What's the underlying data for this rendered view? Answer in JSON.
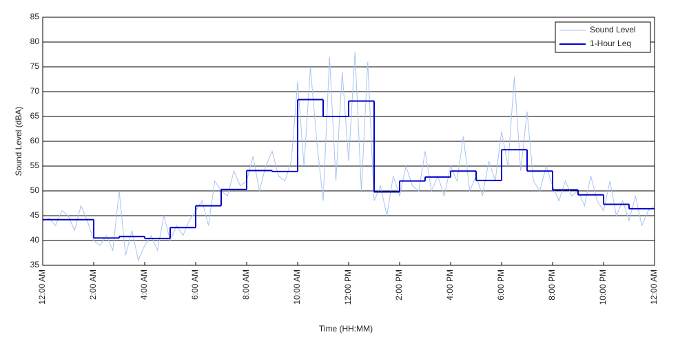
{
  "chart_data": {
    "type": "line",
    "xlabel": "Time (HH:MM)",
    "ylabel": "Sound Level (dBA)",
    "xlim": [
      0,
      24
    ],
    "ylim": [
      35,
      85
    ],
    "xticks": [
      {
        "value": 0,
        "label": "12:00 AM"
      },
      {
        "value": 2,
        "label": "2:00 AM"
      },
      {
        "value": 4,
        "label": "4:00 AM"
      },
      {
        "value": 6,
        "label": "6:00 AM"
      },
      {
        "value": 8,
        "label": "8:00 AM"
      },
      {
        "value": 10,
        "label": "10:00 AM"
      },
      {
        "value": 12,
        "label": "12:00 PM"
      },
      {
        "value": 14,
        "label": "2:00 PM"
      },
      {
        "value": 16,
        "label": "4:00 PM"
      },
      {
        "value": 18,
        "label": "6:00 PM"
      },
      {
        "value": 20,
        "label": "8:00 PM"
      },
      {
        "value": 22,
        "label": "10:00 PM"
      },
      {
        "value": 24,
        "label": "12:00 AM"
      }
    ],
    "yticks": [
      35,
      40,
      45,
      50,
      55,
      60,
      65,
      70,
      75,
      80,
      85
    ],
    "grid": true,
    "legend": "top-right",
    "series": [
      {
        "name": "Sound Level",
        "color": "#a8c4f0",
        "style": "line",
        "x": [
          0,
          0.25,
          0.5,
          0.75,
          1,
          1.25,
          1.5,
          1.75,
          2,
          2.25,
          2.5,
          2.75,
          3,
          3.25,
          3.5,
          3.75,
          4,
          4.25,
          4.5,
          4.75,
          5,
          5.25,
          5.5,
          5.75,
          6,
          6.25,
          6.5,
          6.75,
          7,
          7.25,
          7.5,
          7.75,
          8,
          8.25,
          8.5,
          8.75,
          9,
          9.25,
          9.5,
          9.75,
          10,
          10.25,
          10.5,
          10.75,
          11,
          11.25,
          11.5,
          11.75,
          12,
          12.25,
          12.5,
          12.75,
          13,
          13.25,
          13.5,
          13.75,
          14,
          14.25,
          14.5,
          14.75,
          15,
          15.25,
          15.5,
          15.75,
          16,
          16.25,
          16.5,
          16.75,
          17,
          17.25,
          17.5,
          17.75,
          18,
          18.25,
          18.5,
          18.75,
          19,
          19.25,
          19.5,
          19.75,
          20,
          20.25,
          20.5,
          20.75,
          21,
          21.25,
          21.5,
          21.75,
          22,
          22.25,
          22.5,
          22.75,
          23,
          23.25,
          23.5,
          23.75,
          24
        ],
        "values": [
          44,
          44.5,
          43,
          46,
          45,
          42,
          47,
          44,
          40,
          39,
          41,
          38,
          50,
          37,
          42,
          36,
          39,
          41,
          38,
          45,
          40,
          43,
          41,
          44,
          46,
          48,
          43,
          52,
          50,
          49,
          54,
          51,
          52,
          57,
          50,
          55,
          58,
          53,
          52,
          56,
          72,
          55,
          75,
          60,
          48,
          77,
          52,
          74,
          56,
          78,
          50,
          76,
          48,
          51,
          45,
          53,
          49,
          55,
          51,
          50,
          58,
          50,
          53,
          49,
          55,
          52,
          61,
          50,
          53,
          49,
          56,
          52,
          62,
          55,
          73,
          54,
          66,
          52,
          50,
          55,
          51,
          48,
          52,
          49,
          50,
          47,
          53,
          48,
          46,
          52,
          45,
          48,
          44,
          49,
          43,
          46,
          47
        ]
      },
      {
        "name": "1-Hour Leq",
        "color": "#0000cc",
        "style": "step",
        "x": [
          0,
          1,
          2,
          3,
          4,
          5,
          6,
          7,
          8,
          9,
          10,
          11,
          12,
          13,
          14,
          15,
          16,
          17,
          18,
          19,
          20,
          21,
          22,
          23
        ],
        "values": [
          44.2,
          44.2,
          40.5,
          40.8,
          40.4,
          42.6,
          47,
          50.3,
          54.1,
          53.9,
          68.4,
          65,
          68.1,
          49.8,
          52,
          52.8,
          54,
          52.1,
          58.3,
          54,
          50.2,
          49.2,
          47.3,
          46.4
        ]
      }
    ]
  }
}
